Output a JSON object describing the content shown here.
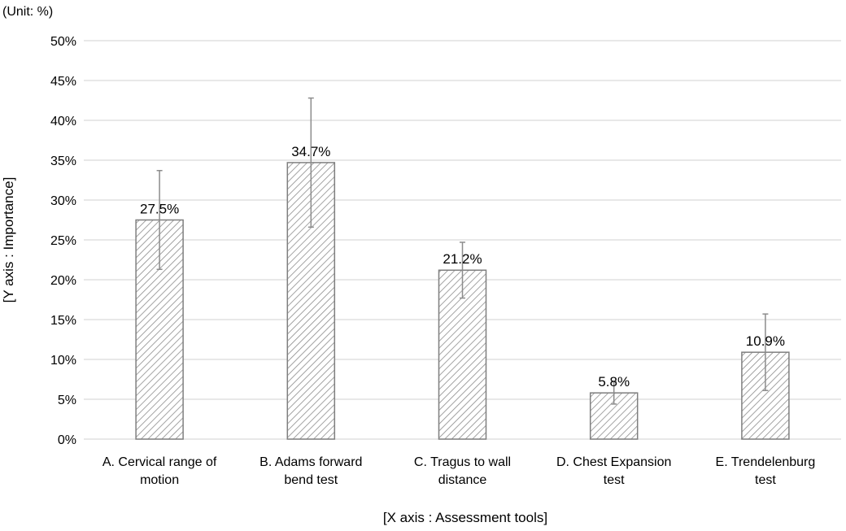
{
  "chart_data": {
    "type": "bar",
    "unit_label": "(Unit: %)",
    "xlabel": "[X axis : Assessment tools]",
    "ylabel": "[Y axis : Importance]",
    "categories": [
      [
        "A. Cervical range of",
        "motion"
      ],
      [
        "B. Adams forward",
        "bend test"
      ],
      [
        "C. Tragus to wall",
        "distance"
      ],
      [
        "D. Chest Expansion",
        "test"
      ],
      [
        "E. Trendelenburg",
        "test"
      ]
    ],
    "values": [
      27.5,
      34.7,
      21.2,
      5.8,
      10.9
    ],
    "value_labels": [
      "27.5%",
      "34.7%",
      "21.2%",
      "5.8%",
      "10.9%"
    ],
    "error_high": [
      33.7,
      42.8,
      24.7,
      7.2,
      15.7
    ],
    "error_low": [
      21.3,
      26.6,
      17.7,
      4.4,
      6.1
    ],
    "ylim": [
      0,
      50
    ],
    "yticks": [
      0,
      5,
      10,
      15,
      20,
      25,
      30,
      35,
      40,
      45,
      50
    ],
    "ytick_labels": [
      "0%",
      "5%",
      "10%",
      "15%",
      "20%",
      "25%",
      "30%",
      "35%",
      "40%",
      "45%",
      "50%"
    ],
    "grid": true,
    "bar_fill": "hatched",
    "colors": {
      "bar_stroke": "#7f7f7f",
      "hatch": "#8c8c8c",
      "grid": "#d9d9d9",
      "error_bar": "#8c8c8c"
    }
  }
}
